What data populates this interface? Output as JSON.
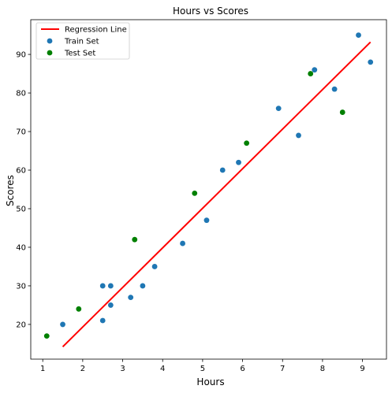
{
  "chart_data": {
    "type": "scatter",
    "title": "Hours vs Scores",
    "xlabel": "Hours",
    "ylabel": "Scores",
    "xlim": [
      0.7,
      9.6
    ],
    "ylim": [
      11,
      99
    ],
    "xticks": [
      1,
      2,
      3,
      4,
      5,
      6,
      7,
      8,
      9
    ],
    "yticks": [
      20,
      30,
      40,
      50,
      60,
      70,
      80,
      90
    ],
    "grid": false,
    "legend_position": "top-left",
    "series": [
      {
        "name": "Regression Line",
        "kind": "line",
        "color": "#ff0000",
        "x": [
          1.5,
          9.2
        ],
        "y": [
          14.2,
          93.2
        ]
      },
      {
        "name": "Train Set",
        "kind": "scatter",
        "color": "#1f77b4",
        "x": [
          1.5,
          2.5,
          2.5,
          2.7,
          2.7,
          3.2,
          3.5,
          3.8,
          4.5,
          5.1,
          5.5,
          5.9,
          6.9,
          7.4,
          7.8,
          8.3,
          8.9,
          9.2
        ],
        "y": [
          20,
          21,
          30,
          25,
          30,
          27,
          30,
          35,
          41,
          47,
          60,
          62,
          76,
          69,
          86,
          81,
          95,
          88
        ]
      },
      {
        "name": "Test Set",
        "kind": "scatter",
        "color": "#008000",
        "x": [
          1.1,
          1.9,
          3.3,
          4.8,
          6.1,
          7.7,
          8.5
        ],
        "y": [
          17,
          24,
          42,
          54,
          67,
          85,
          75
        ]
      }
    ]
  }
}
